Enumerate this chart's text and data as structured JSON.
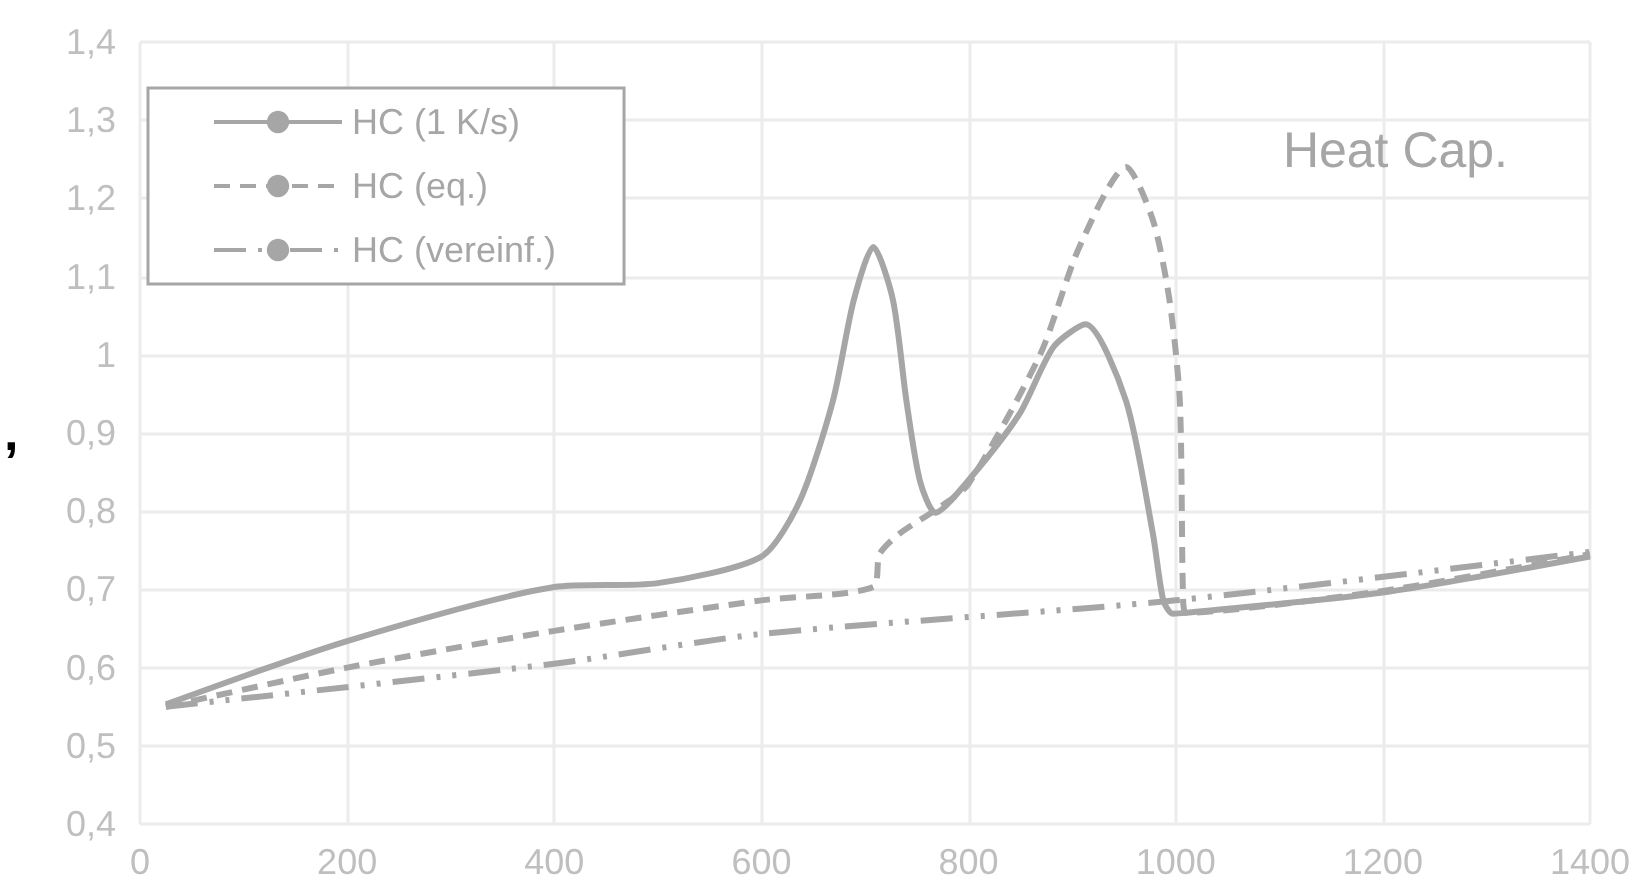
{
  "chart_data": {
    "type": "line",
    "title": "Heat Cap.",
    "ylabel": ",",
    "xlim": [
      0,
      1400
    ],
    "xticks": [
      0,
      200,
      400,
      600,
      800,
      1000,
      1200,
      1400
    ],
    "ylim": [
      0.4,
      1.4
    ],
    "yticks": [
      {
        "value": 0.4,
        "label": "0,4"
      },
      {
        "value": 0.5,
        "label": "0,5"
      },
      {
        "value": 0.6,
        "label": "0,6"
      },
      {
        "value": 0.7,
        "label": "0,7"
      },
      {
        "value": 0.8,
        "label": "0,8"
      },
      {
        "value": 0.9,
        "label": "0,9"
      },
      1,
      {
        "value": 1.1,
        "label": "1,1"
      },
      {
        "value": 1.2,
        "label": "1,2"
      },
      {
        "value": 1.3,
        "label": "1,3"
      },
      {
        "value": 1.4,
        "label": "1,4"
      }
    ],
    "grid": true,
    "legend": "top left",
    "marker": "none",
    "series": [
      {
        "name": "HC (1 K/s)",
        "color": "#a6a6a6",
        "line_style": "solid",
        "x": [
          25,
          200,
          400,
          500,
          600,
          637,
          669,
          689,
          708,
          727,
          740,
          753,
          768,
          797,
          849,
          882,
          913,
          952,
          978,
          988,
          997,
          1010,
          1200,
          1400
        ],
        "values": [
          0.553,
          0.634,
          0.703,
          0.708,
          0.742,
          0.813,
          0.941,
          1.069,
          1.138,
          1.07,
          0.941,
          0.839,
          0.798,
          0.835,
          0.924,
          1.01,
          1.039,
          0.941,
          0.771,
          0.686,
          0.669,
          0.67,
          0.696,
          0.742
        ]
      },
      {
        "name": "HC (eq.)",
        "color": "#a6a6a6",
        "line_style": "dashed",
        "x": [
          25,
          200,
          400,
          600,
          708,
          714,
          733,
          772,
          800,
          869,
          907,
          952,
          978,
          994,
          1004,
          1007,
          1010,
          1200,
          1400
        ],
        "values": [
          0.55,
          0.6,
          0.647,
          0.686,
          0.703,
          0.745,
          0.771,
          0.805,
          0.835,
          1.0,
          1.138,
          1.24,
          1.172,
          1.07,
          0.94,
          0.694,
          0.67,
          0.698,
          0.745
        ]
      },
      {
        "name": "HC (vereinf.)",
        "color": "#a6a6a6",
        "line_style": "dashdot",
        "x": [
          25,
          400,
          600,
          1000,
          1400
        ],
        "values": [
          0.55,
          0.605,
          0.643,
          0.686,
          0.748
        ]
      }
    ]
  }
}
